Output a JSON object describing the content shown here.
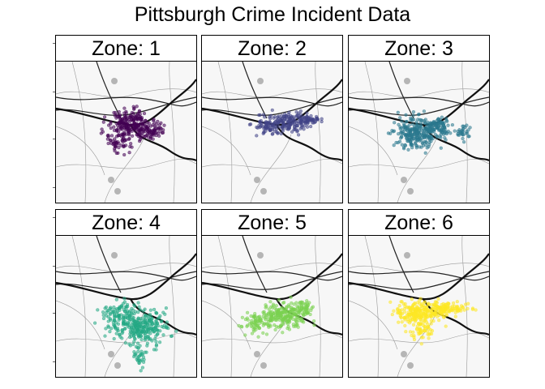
{
  "title": "Pittsburgh Crime Incident Data",
  "facets": [
    {
      "label": "Zone: 1",
      "color": "#440154"
    },
    {
      "label": "Zone: 2",
      "color": "#414487"
    },
    {
      "label": "Zone: 3",
      "color": "#2A788E"
    },
    {
      "label": "Zone: 4",
      "color": "#22A884"
    },
    {
      "label": "Zone: 5",
      "color": "#7AD151"
    },
    {
      "label": "Zone: 6",
      "color": "#FDE725"
    }
  ],
  "colors": {
    "river": "#111111",
    "road": "#222222",
    "basemap_bg": "#f7f7f7"
  }
}
